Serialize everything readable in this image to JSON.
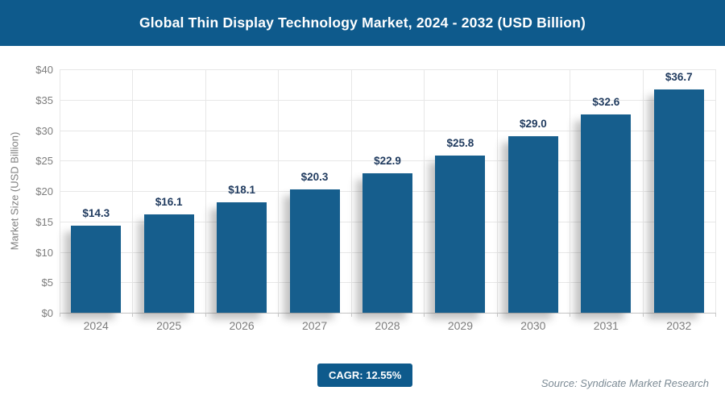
{
  "header": {
    "title": "Global Thin Display Technology Market, 2024 - 2032 (USD Billion)"
  },
  "footer": {
    "cagr_label": "CAGR: 12.55%",
    "source": "Source: Syndicate Market Research"
  },
  "colors": {
    "banner": "#0e5a8c",
    "bar": "#165e8d",
    "value_label": "#1f3a5e",
    "axis_text": "#7d7d7d",
    "grid": "#e7e7e7",
    "baseline": "#c4c4c4",
    "source_text": "#7c8b95"
  },
  "chart_data": {
    "type": "bar",
    "title": "Global Thin Display Technology Market, 2024 - 2032 (USD Billion)",
    "categories": [
      "2024",
      "2025",
      "2026",
      "2027",
      "2028",
      "2029",
      "2030",
      "2031",
      "2032"
    ],
    "values": [
      14.3,
      16.1,
      18.1,
      20.3,
      22.9,
      25.8,
      29.0,
      32.6,
      36.7
    ],
    "value_labels": [
      "$14.3",
      "$16.1",
      "$18.1",
      "$20.3",
      "$22.9",
      "$25.8",
      "$29.0",
      "$32.6",
      "$36.7"
    ],
    "xlabel": "",
    "ylabel": "Market Size (USD Billion)",
    "ylim": [
      0,
      40
    ],
    "ytick_step": 5,
    "ytick_prefix": "$",
    "grid": "both",
    "legend": "none",
    "annotations": [
      "CAGR: 12.55%",
      "Source: Syndicate Market Research"
    ]
  }
}
